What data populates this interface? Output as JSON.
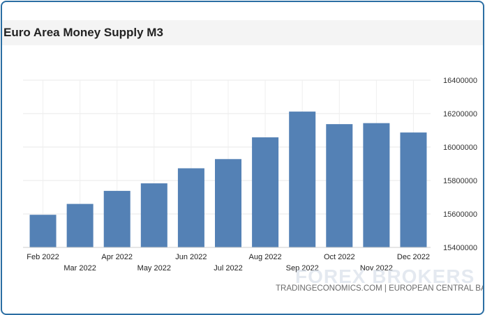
{
  "chart_data": {
    "type": "bar",
    "title": "Euro Area Money Supply M3",
    "categories": [
      "Feb 2022",
      "Mar 2022",
      "Apr 2022",
      "May 2022",
      "Jun 2022",
      "Jul 2022",
      "Aug 2022",
      "Sep 2022",
      "Oct 2022",
      "Nov 2022",
      "Dec 2022"
    ],
    "values": [
      15595000,
      15660000,
      15738000,
      15783000,
      15873000,
      15928000,
      16058000,
      16212000,
      16137000,
      16143000,
      16087000
    ],
    "ylim": [
      15400000,
      16400000
    ],
    "yticks": [
      "15400000",
      "15600000",
      "15800000",
      "16000000",
      "16200000",
      "16400000"
    ],
    "y_axis_side": "right",
    "grid": true,
    "bar_color": "#5481b5",
    "source": "TRADINGECONOMICS.COM | EUROPEAN CENTRAL BANK",
    "watermark": "FOREX BROKERS"
  }
}
